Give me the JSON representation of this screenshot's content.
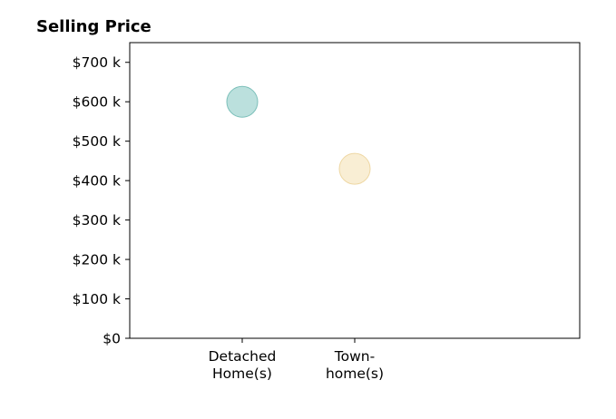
{
  "chart_data": {
    "type": "scatter",
    "title": "Selling Price",
    "categories": [
      [
        "Detached",
        "Home(s)"
      ],
      [
        "Town-",
        "home(s)"
      ]
    ],
    "points": [
      {
        "category_index": 0,
        "value": 600,
        "color": "#8dccc6",
        "edge": "#7bbfb9"
      },
      {
        "category_index": 1,
        "value": 430,
        "color": "#f5e3b8",
        "edge": "#eed7a3"
      }
    ],
    "unit": "thousands of dollars",
    "ylim": [
      0,
      750
    ],
    "yticks": [
      0,
      100,
      200,
      300,
      400,
      500,
      600,
      700
    ],
    "ytick_labels": [
      "$0",
      "$100 k",
      "$200 k",
      "$300 k",
      "$400 k",
      "$500 k",
      "$600 k",
      "$700 k"
    ],
    "xlabel": "",
    "ylabel": "",
    "grid": false,
    "legend": "none"
  }
}
